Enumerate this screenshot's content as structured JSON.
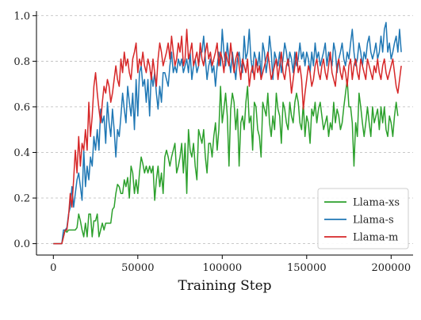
{
  "chart_data": {
    "type": "line",
    "title": "",
    "xlabel": "Training Step",
    "ylabel": "",
    "xlim": [
      -10000,
      213000
    ],
    "ylim": [
      -0.05,
      1.02
    ],
    "x_ticks": [
      0,
      50000,
      100000,
      150000,
      200000
    ],
    "x_tick_labels": [
      "0",
      "50000",
      "100000",
      "150000",
      "200000"
    ],
    "y_ticks": [
      0.0,
      0.2,
      0.4,
      0.6,
      0.8,
      1.0
    ],
    "y_tick_labels": [
      "0.0",
      "0.2",
      "0.4",
      "0.6",
      "0.8",
      "1.0"
    ],
    "grid": "horizontal-dashed",
    "legend_position": "bottom-right",
    "step": 1000,
    "series": [
      {
        "name": "Llama-xs",
        "color": "#2ca02c",
        "values": [
          0.0,
          0.0,
          0.0,
          0.0,
          0.0,
          0.0,
          0.03,
          0.06,
          0.05,
          0.06,
          0.06,
          0.06,
          0.06,
          0.06,
          0.07,
          0.13,
          0.1,
          0.06,
          0.03,
          0.09,
          0.03,
          0.13,
          0.13,
          0.03,
          0.1,
          0.1,
          0.13,
          0.03,
          0.06,
          0.09,
          0.06,
          0.09,
          0.09,
          0.09,
          0.09,
          0.15,
          0.16,
          0.22,
          0.26,
          0.25,
          0.22,
          0.22,
          0.28,
          0.25,
          0.29,
          0.2,
          0.34,
          0.31,
          0.22,
          0.28,
          0.22,
          0.31,
          0.38,
          0.35,
          0.31,
          0.34,
          0.31,
          0.34,
          0.31,
          0.34,
          0.19,
          0.28,
          0.34,
          0.25,
          0.31,
          0.22,
          0.38,
          0.41,
          0.38,
          0.34,
          0.38,
          0.41,
          0.44,
          0.31,
          0.34,
          0.38,
          0.44,
          0.31,
          0.44,
          0.22,
          0.5,
          0.41,
          0.38,
          0.44,
          0.34,
          0.28,
          0.5,
          0.47,
          0.44,
          0.5,
          0.38,
          0.31,
          0.44,
          0.44,
          0.38,
          0.47,
          0.53,
          0.41,
          0.5,
          0.69,
          0.53,
          0.59,
          0.66,
          0.56,
          0.34,
          0.59,
          0.66,
          0.62,
          0.5,
          0.59,
          0.34,
          0.53,
          0.56,
          0.5,
          0.62,
          0.69,
          0.53,
          0.56,
          0.41,
          0.62,
          0.6,
          0.5,
          0.47,
          0.38,
          0.62,
          0.59,
          0.56,
          0.66,
          0.53,
          0.47,
          0.56,
          0.5,
          0.66,
          0.59,
          0.56,
          0.44,
          0.62,
          0.59,
          0.53,
          0.5,
          0.62,
          0.56,
          0.53,
          0.62,
          0.66,
          0.62,
          0.53,
          0.5,
          0.62,
          0.47,
          0.56,
          0.53,
          0.44,
          0.59,
          0.56,
          0.62,
          0.53,
          0.59,
          0.62,
          0.56,
          0.5,
          0.53,
          0.56,
          0.47,
          0.53,
          0.5,
          0.62,
          0.53,
          0.59,
          0.56,
          0.5,
          0.53,
          0.6,
          0.66,
          0.72,
          0.6,
          0.6,
          0.53,
          0.34,
          0.53,
          0.47,
          0.66,
          0.6,
          0.53,
          0.47,
          0.53,
          0.6,
          0.53,
          0.47,
          0.6,
          0.53,
          0.56,
          0.59,
          0.5,
          0.6,
          0.53,
          0.6,
          0.5,
          0.47,
          0.56,
          0.53,
          0.47,
          0.56,
          0.62,
          0.56
        ]
      },
      {
        "name": "Llama-s",
        "color": "#1f77b4",
        "values": [
          0.0,
          0.0,
          0.0,
          0.0,
          0.0,
          0.0,
          0.06,
          0.06,
          0.07,
          0.13,
          0.16,
          0.25,
          0.16,
          0.22,
          0.28,
          0.31,
          0.25,
          0.19,
          0.41,
          0.25,
          0.34,
          0.28,
          0.38,
          0.34,
          0.47,
          0.41,
          0.5,
          0.41,
          0.59,
          0.53,
          0.56,
          0.44,
          0.62,
          0.53,
          0.47,
          0.59,
          0.5,
          0.38,
          0.5,
          0.47,
          0.56,
          0.66,
          0.59,
          0.53,
          0.69,
          0.62,
          0.56,
          0.66,
          0.5,
          0.72,
          0.56,
          0.75,
          0.78,
          0.69,
          0.72,
          0.62,
          0.72,
          0.56,
          0.75,
          0.69,
          0.75,
          0.66,
          0.59,
          0.69,
          0.62,
          0.75,
          0.75,
          0.72,
          0.69,
          0.78,
          0.84,
          0.75,
          0.78,
          0.75,
          0.81,
          0.78,
          0.81,
          0.75,
          0.78,
          0.81,
          0.75,
          0.84,
          0.72,
          0.78,
          0.81,
          0.75,
          0.78,
          0.84,
          0.84,
          0.91,
          0.81,
          0.72,
          0.78,
          0.81,
          0.75,
          0.78,
          0.69,
          0.78,
          0.84,
          0.78,
          0.94,
          0.84,
          0.78,
          0.88,
          0.81,
          0.75,
          0.84,
          0.78,
          0.72,
          0.81,
          0.84,
          0.78,
          0.75,
          0.91,
          0.81,
          0.84,
          0.94,
          0.81,
          0.75,
          0.84,
          0.81,
          0.78,
          0.84,
          0.72,
          0.88,
          0.84,
          0.75,
          0.81,
          0.91,
          0.84,
          0.72,
          0.84,
          0.81,
          0.78,
          0.84,
          0.75,
          0.81,
          0.88,
          0.84,
          0.78,
          0.84,
          0.81,
          0.75,
          0.84,
          0.78,
          0.81,
          0.88,
          0.81,
          0.84,
          0.78,
          0.84,
          0.81,
          0.75,
          0.84,
          0.78,
          0.88,
          0.81,
          0.84,
          0.78,
          0.81,
          0.84,
          0.88,
          0.78,
          0.84,
          0.81,
          0.78,
          0.88,
          0.84,
          0.75,
          0.81,
          0.84,
          0.88,
          0.81,
          0.78,
          0.84,
          0.81,
          0.88,
          0.94,
          0.84,
          0.78,
          0.81,
          0.88,
          0.84,
          0.78,
          0.84,
          0.81,
          0.88,
          0.91,
          0.84,
          0.81,
          0.84,
          0.88,
          0.81,
          0.84,
          0.91,
          0.84,
          0.94,
          0.97,
          0.84,
          0.88,
          0.81,
          0.84,
          0.88,
          0.91,
          0.84,
          0.94,
          0.84
        ]
      },
      {
        "name": "Llama-m",
        "color": "#d62728",
        "values": [
          0.0,
          0.0,
          0.0,
          0.0,
          0.0,
          0.0,
          0.03,
          0.06,
          0.06,
          0.12,
          0.22,
          0.16,
          0.28,
          0.41,
          0.31,
          0.47,
          0.34,
          0.44,
          0.41,
          0.5,
          0.41,
          0.62,
          0.47,
          0.56,
          0.69,
          0.75,
          0.66,
          0.59,
          0.53,
          0.62,
          0.69,
          0.66,
          0.72,
          0.69,
          0.62,
          0.66,
          0.72,
          0.78,
          0.72,
          0.69,
          0.81,
          0.75,
          0.84,
          0.78,
          0.81,
          0.75,
          0.72,
          0.81,
          0.84,
          0.88,
          0.75,
          0.81,
          0.78,
          0.84,
          0.78,
          0.75,
          0.81,
          0.78,
          0.72,
          0.81,
          0.75,
          0.69,
          0.81,
          0.88,
          0.84,
          0.78,
          0.81,
          0.84,
          0.88,
          0.81,
          0.91,
          0.84,
          0.78,
          0.81,
          0.88,
          0.84,
          0.91,
          0.78,
          0.81,
          0.94,
          0.81,
          0.84,
          0.88,
          0.78,
          0.81,
          0.84,
          0.78,
          0.88,
          0.81,
          0.78,
          0.84,
          0.88,
          0.81,
          0.84,
          0.78,
          0.81,
          0.84,
          0.88,
          0.78,
          0.84,
          0.81,
          0.75,
          0.84,
          0.81,
          0.78,
          0.88,
          0.81,
          0.75,
          0.81,
          0.84,
          0.78,
          0.72,
          0.81,
          0.78,
          0.75,
          0.81,
          0.69,
          0.75,
          0.78,
          0.72,
          0.81,
          0.75,
          0.78,
          0.72,
          0.75,
          0.78,
          0.81,
          0.84,
          0.78,
          0.72,
          0.75,
          0.78,
          0.81,
          0.72,
          0.78,
          0.84,
          0.75,
          0.72,
          0.78,
          0.81,
          0.75,
          0.66,
          0.72,
          0.78,
          0.84,
          0.75,
          0.78,
          0.72,
          0.59,
          0.66,
          0.72,
          0.78,
          0.75,
          0.69,
          0.72,
          0.78,
          0.81,
          0.75,
          0.72,
          0.78,
          0.81,
          0.75,
          0.72,
          0.78,
          0.84,
          0.75,
          0.72,
          0.69,
          0.78,
          0.81,
          0.75,
          0.72,
          0.78,
          0.75,
          0.69,
          0.78,
          0.81,
          0.72,
          0.78,
          0.81,
          0.75,
          0.72,
          0.81,
          0.78,
          0.75,
          0.72,
          0.81,
          0.78,
          0.75,
          0.72,
          0.78,
          0.75,
          0.81,
          0.75,
          0.72,
          0.78,
          0.81,
          0.75,
          0.72,
          0.75,
          0.78,
          0.81,
          0.75,
          0.69,
          0.66,
          0.72,
          0.78
        ]
      }
    ]
  }
}
